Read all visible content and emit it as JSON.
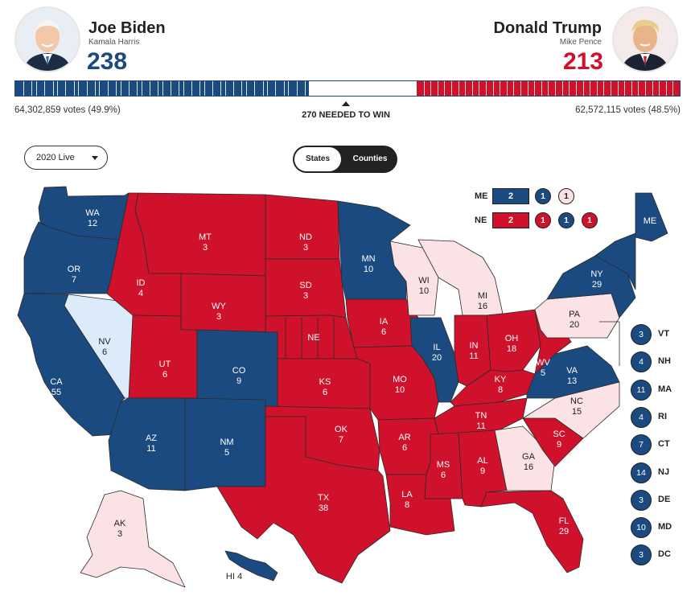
{
  "colors": {
    "dem": "#1a4a7f",
    "rep": "#d0112b",
    "lean_dem": "#dcebfa",
    "lean_rep": "#fbe2e4",
    "outline": "#2b2b2b"
  },
  "biden": {
    "name": "Joe Biden",
    "vp": "Kamala Harris",
    "ev": "238",
    "votes": "64,302,859 votes (49.9%)",
    "color": "#1a4a7f"
  },
  "trump": {
    "name": "Donald Trump",
    "vp": "Mike Pence",
    "ev": "213",
    "votes": "62,572,115 votes (48.5%)",
    "color": "#d0112b"
  },
  "progress": {
    "total": 538,
    "dem": 238,
    "rep": 213,
    "needed": "270 NEEDED TO WIN"
  },
  "controls": {
    "select_value": "2020 Live",
    "toggle": [
      "States",
      "Counties"
    ],
    "active": "States"
  },
  "split": {
    "me": {
      "label": "ME",
      "at_large": "2",
      "districts": [
        "1",
        "1"
      ]
    },
    "ne": {
      "label": "NE",
      "at_large": "2",
      "districts": [
        "1",
        "1",
        "1"
      ]
    }
  },
  "small_states": [
    {
      "abbr": "VT",
      "ev": "3",
      "party": "dem"
    },
    {
      "abbr": "NH",
      "ev": "4",
      "party": "dem"
    },
    {
      "abbr": "MA",
      "ev": "11",
      "party": "dem"
    },
    {
      "abbr": "RI",
      "ev": "4",
      "party": "dem"
    },
    {
      "abbr": "CT",
      "ev": "7",
      "party": "dem"
    },
    {
      "abbr": "NJ",
      "ev": "14",
      "party": "dem"
    },
    {
      "abbr": "DE",
      "ev": "3",
      "party": "dem"
    },
    {
      "abbr": "MD",
      "ev": "10",
      "party": "dem"
    },
    {
      "abbr": "DC",
      "ev": "3",
      "party": "dem"
    }
  ],
  "states": [
    {
      "abbr": "WA",
      "ev": "12",
      "party": "dem"
    },
    {
      "abbr": "OR",
      "ev": "7",
      "party": "dem"
    },
    {
      "abbr": "CA",
      "ev": "55",
      "party": "dem"
    },
    {
      "abbr": "NV",
      "ev": "6",
      "party": "lean_dem"
    },
    {
      "abbr": "ID",
      "ev": "4",
      "party": "rep"
    },
    {
      "abbr": "MT",
      "ev": "3",
      "party": "rep"
    },
    {
      "abbr": "WY",
      "ev": "3",
      "party": "rep"
    },
    {
      "abbr": "UT",
      "ev": "6",
      "party": "rep"
    },
    {
      "abbr": "AZ",
      "ev": "11",
      "party": "dem"
    },
    {
      "abbr": "CO",
      "ev": "9",
      "party": "dem"
    },
    {
      "abbr": "NM",
      "ev": "5",
      "party": "dem"
    },
    {
      "abbr": "ND",
      "ev": "3",
      "party": "rep"
    },
    {
      "abbr": "SD",
      "ev": "3",
      "party": "rep"
    },
    {
      "abbr": "NE",
      "ev": "",
      "party": "rep"
    },
    {
      "abbr": "KS",
      "ev": "6",
      "party": "rep"
    },
    {
      "abbr": "OK",
      "ev": "7",
      "party": "rep"
    },
    {
      "abbr": "TX",
      "ev": "38",
      "party": "rep"
    },
    {
      "abbr": "MN",
      "ev": "10",
      "party": "dem"
    },
    {
      "abbr": "IA",
      "ev": "6",
      "party": "rep"
    },
    {
      "abbr": "MO",
      "ev": "10",
      "party": "rep"
    },
    {
      "abbr": "AR",
      "ev": "6",
      "party": "rep"
    },
    {
      "abbr": "LA",
      "ev": "8",
      "party": "rep"
    },
    {
      "abbr": "WI",
      "ev": "10",
      "party": "lean_rep"
    },
    {
      "abbr": "IL",
      "ev": "20",
      "party": "dem"
    },
    {
      "abbr": "MI",
      "ev": "16",
      "party": "lean_rep"
    },
    {
      "abbr": "IN",
      "ev": "11",
      "party": "rep"
    },
    {
      "abbr": "OH",
      "ev": "18",
      "party": "rep"
    },
    {
      "abbr": "KY",
      "ev": "8",
      "party": "rep"
    },
    {
      "abbr": "TN",
      "ev": "11",
      "party": "rep"
    },
    {
      "abbr": "MS",
      "ev": "6",
      "party": "rep"
    },
    {
      "abbr": "AL",
      "ev": "9",
      "party": "rep"
    },
    {
      "abbr": "GA",
      "ev": "16",
      "party": "lean_rep"
    },
    {
      "abbr": "FL",
      "ev": "29",
      "party": "rep"
    },
    {
      "abbr": "SC",
      "ev": "9",
      "party": "rep"
    },
    {
      "abbr": "NC",
      "ev": "15",
      "party": "lean_rep"
    },
    {
      "abbr": "VA",
      "ev": "13",
      "party": "dem"
    },
    {
      "abbr": "WV",
      "ev": "5",
      "party": "rep"
    },
    {
      "abbr": "PA",
      "ev": "20",
      "party": "lean_rep"
    },
    {
      "abbr": "NY",
      "ev": "29",
      "party": "dem"
    },
    {
      "abbr": "ME",
      "ev": "",
      "party": "dem"
    },
    {
      "abbr": "AK",
      "ev": "3",
      "party": "lean_rep"
    },
    {
      "abbr": "HI",
      "ev": "4",
      "party": "dem"
    }
  ]
}
